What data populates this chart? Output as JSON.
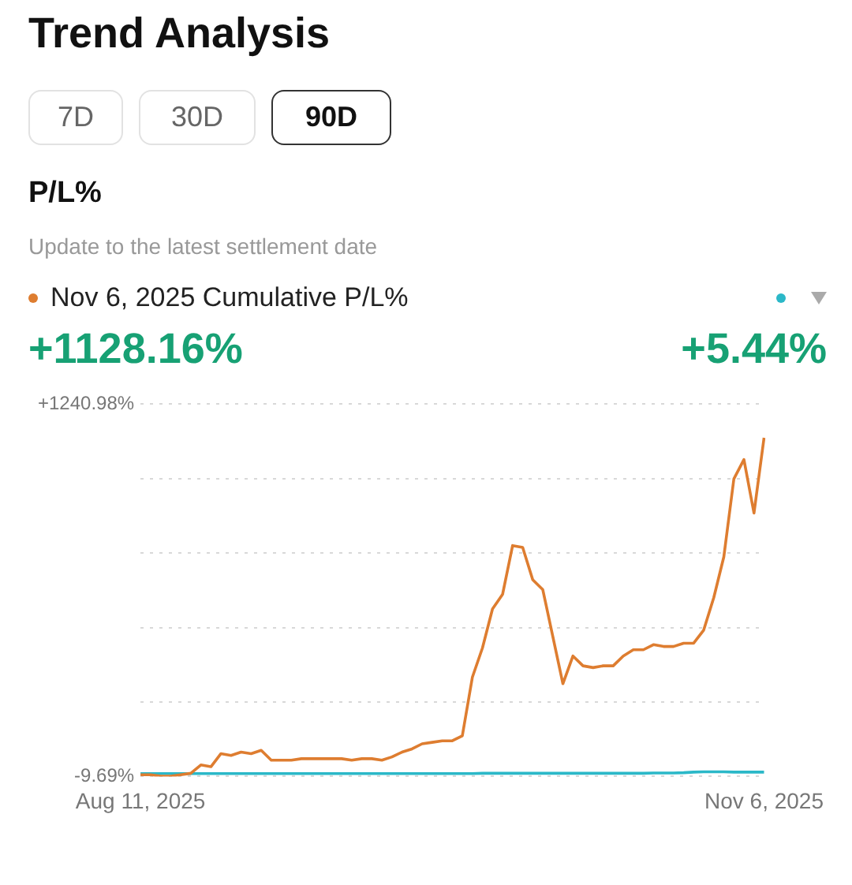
{
  "chart_data": {
    "type": "line",
    "title": "Trend Analysis",
    "subtitle": "P/L%",
    "annotations": [
      "7D",
      "30D",
      "90D",
      "Update to the latest settlement date",
      "+1128.16%",
      "+5.44%"
    ],
    "categories": [
      "Aug 11, 2025",
      null,
      null,
      null,
      null,
      null,
      null,
      null,
      null,
      null,
      null,
      null,
      null,
      null,
      null,
      null,
      null,
      null,
      null,
      null,
      null,
      null,
      null,
      null,
      null,
      null,
      null,
      null,
      null,
      null,
      null,
      null,
      null,
      null,
      null,
      null,
      null,
      null,
      null,
      null,
      null,
      null,
      null,
      null,
      null,
      null,
      null,
      null,
      null,
      null,
      null,
      null,
      null,
      null,
      null,
      null,
      null,
      null,
      null,
      null,
      null,
      null,
      "Nov 6, 2025"
    ],
    "series": [
      {
        "name": "Nov 6, 2025 Cumulative P/L%",
        "color": "#de7d30",
        "values": [
          -4,
          -4,
          -9,
          -9,
          -4,
          1,
          29,
          23,
          67,
          61,
          72,
          67,
          78,
          45,
          45,
          45,
          50,
          50,
          50,
          50,
          50,
          45,
          50,
          50,
          45,
          56,
          72,
          83,
          100,
          105,
          110,
          110,
          127,
          324,
          422,
          553,
          602,
          766,
          760,
          651,
          618,
          460,
          302,
          395,
          362,
          356,
          362,
          362,
          395,
          416,
          416,
          433,
          427,
          427,
          438,
          438,
          482,
          591,
          728,
          990,
          1055,
          875,
          1128
        ]
      },
      {
        "color": "#2bb8c8",
        "values": [
          0,
          0,
          0,
          0,
          0,
          0,
          0,
          0,
          0,
          0,
          0,
          0,
          0,
          0,
          0,
          0,
          0,
          0,
          0,
          0,
          0,
          0,
          0,
          0,
          0,
          0,
          0,
          0,
          0,
          0,
          0,
          0,
          0,
          0,
          1,
          1,
          1,
          1,
          1,
          1,
          1,
          1,
          1,
          1,
          1,
          1,
          1,
          1,
          1,
          1,
          1,
          2,
          2,
          2,
          3,
          5,
          6,
          6,
          6,
          5,
          5,
          5,
          5
        ]
      }
    ],
    "ylim": [
      -9.69,
      1240.98
    ],
    "yticks": [
      {
        "value": -9.69,
        "label": "-9.69%"
      },
      {
        "value": 240.44,
        "label": null
      },
      {
        "value": 490.58,
        "label": null
      },
      {
        "value": 740.71,
        "label": null
      },
      {
        "value": 990.85,
        "label": null
      },
      {
        "value": 1240.98,
        "label": "+1240.98%"
      }
    ],
    "grid": "y",
    "legend": "top",
    "marker": "none",
    "line_style": "solid"
  }
}
